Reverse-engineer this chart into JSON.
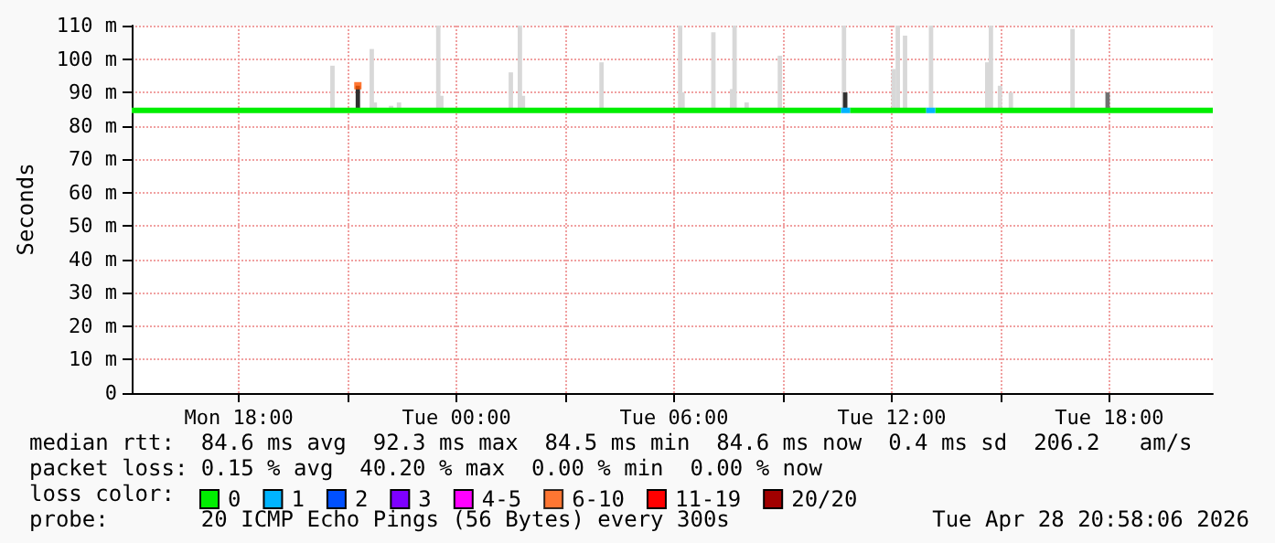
{
  "chart_data": {
    "type": "line",
    "ylabel": "Seconds",
    "legend_title": "loss color:",
    "legend": "bottom left",
    "grid": true,
    "xlim": [
      "2026-04-27T15:03",
      "2026-04-28T20:51"
    ],
    "xticks": [
      {
        "value": "2026-04-27T18:00",
        "label": "Mon 18:00"
      },
      {
        "value": "2026-04-27T21:00",
        "label": null
      },
      {
        "value": "2026-04-28T00:00",
        "label": "Tue 00:00"
      },
      {
        "value": "2026-04-28T03:00",
        "label": null
      },
      {
        "value": "2026-04-28T06:00",
        "label": "Tue 06:00"
      },
      {
        "value": "2026-04-28T09:00",
        "label": null
      },
      {
        "value": "2026-04-28T12:00",
        "label": "Tue 12:00"
      },
      {
        "value": "2026-04-28T15:00",
        "label": null
      },
      {
        "value": "2026-04-28T18:00",
        "label": "Tue 18:00"
      }
    ],
    "ylim": [
      0,
      110
    ],
    "yticks": [
      0,
      {
        "value": 10,
        "label": "10 m"
      },
      {
        "value": 20,
        "label": "20 m"
      },
      {
        "value": 30,
        "label": "30 m"
      },
      {
        "value": 40,
        "label": "40 m"
      },
      {
        "value": 50,
        "label": "50 m"
      },
      {
        "value": 60,
        "label": "60 m"
      },
      {
        "value": 70,
        "label": "70 m"
      },
      {
        "value": 80,
        "label": "80 m"
      },
      {
        "value": 90,
        "label": "90 m"
      },
      {
        "value": 100,
        "label": "100 m"
      },
      {
        "value": 110,
        "label": "110 m"
      }
    ],
    "annotations": [
      "median rtt:  84.6 ms avg  92.3 ms max  84.5 ms min  84.6 ms now  0.4 ms sd  206.2   am/s",
      "packet loss: 0.15 % avg  40.20 % max  0.00 % min  0.00 % now",
      "probe:       20 ICMP Echo Pings (56 Bytes) every 300s",
      "Tue Apr 28 20:58:06 2026"
    ],
    "series": [
      {
        "type": "bar",
        "color": "#d8d8d8",
        "x": [
          "2026-04-27T20:35",
          "2026-04-27T21:17",
          "2026-04-27T21:40",
          "2026-04-27T21:45",
          "2026-04-27T22:12",
          "2026-04-27T22:25",
          "2026-04-27T23:30",
          "2026-04-27T23:35",
          "2026-04-28T01:30",
          "2026-04-28T01:45",
          "2026-04-28T01:50",
          "2026-04-28T04:00",
          "2026-04-28T06:10",
          "2026-04-28T06:14",
          "2026-04-28T07:05",
          "2026-04-28T07:36",
          "2026-04-28T07:40",
          "2026-04-28T08:00",
          "2026-04-28T08:55",
          "2026-04-28T10:41",
          "2026-04-28T10:43",
          "2026-04-28T12:03",
          "2026-04-28T12:10",
          "2026-04-28T12:22",
          "2026-04-28T13:05",
          "2026-04-28T14:38",
          "2026-04-28T14:44",
          "2026-04-28T14:59",
          "2026-04-28T15:17",
          "2026-04-28T16:59",
          "2026-04-28T17:57"
        ],
        "base": [
          85,
          85,
          85,
          85,
          85,
          85,
          85,
          85,
          85,
          85,
          85,
          85,
          85,
          85,
          85,
          85,
          85,
          85,
          85,
          85,
          85,
          85,
          85,
          85,
          85,
          85,
          85,
          85,
          85,
          85,
          85
        ],
        "values": [
          13,
          7,
          18,
          2,
          1,
          2,
          25,
          4,
          11,
          25,
          4,
          14,
          25,
          5,
          23,
          6,
          25,
          2,
          16,
          25,
          5,
          12,
          25,
          22,
          25,
          14,
          25,
          7,
          5,
          24,
          5
        ],
        "colors": [
          "#d8d8d8",
          "#303030",
          "#d8d8d8",
          "#d8d8d8",
          "#d8d8d8",
          "#d8d8d8",
          "#d8d8d8",
          "#d8d8d8",
          "#d8d8d8",
          "#d8d8d8",
          "#d8d8d8",
          "#d8d8d8",
          "#d8d8d8",
          "#d8d8d8",
          "#d8d8d8",
          "#d8d8d8",
          "#d8d8d8",
          "#d8d8d8",
          "#d8d8d8",
          "#d8d8d8",
          "#303030",
          "#d8d8d8",
          "#d8d8d8",
          "#d8d8d8",
          "#d8d8d8",
          "#d8d8d8",
          "#d8d8d8",
          "#d8d8d8",
          "#d8d8d8",
          "#d8d8d8",
          "#707070"
        ]
      },
      {
        "name": "0",
        "color": "#00ee00",
        "x": [
          "2026-04-27T15:03",
          "2026-04-28T10:36",
          "2026-04-28T10:42",
          "2026-04-28T10:51",
          "2026-04-28T12:57",
          "2026-04-28T13:00",
          "2026-04-28T13:12",
          "2026-04-28T20:51"
        ],
        "values": [
          84.6,
          84.6,
          null,
          84.6,
          84.6,
          null,
          84.6,
          84.6
        ]
      },
      {
        "name": "1",
        "color": "#00b4ff",
        "x": [
          "2026-04-28T10:36",
          "2026-04-28T10:51",
          "2026-04-28T10:54",
          "2026-04-28T12:57",
          "2026-04-28T13:12"
        ],
        "values": [
          84.6,
          84.6,
          null,
          84.6,
          84.6
        ]
      },
      {
        "name": "2",
        "color": "#0050ff"
      },
      {
        "name": "3",
        "color": "#7e00ff"
      },
      {
        "name": "4-5",
        "color": "#ff00ff"
      },
      {
        "name": "6-10",
        "type": "scatter",
        "marker": "square",
        "color": "#ff5500",
        "x": [
          "2026-04-27T21:17"
        ],
        "values": [
          92
        ]
      },
      {
        "name": "11-19",
        "color": "#ff0000"
      },
      {
        "name": "20/20",
        "color": "#a10000"
      }
    ]
  }
}
